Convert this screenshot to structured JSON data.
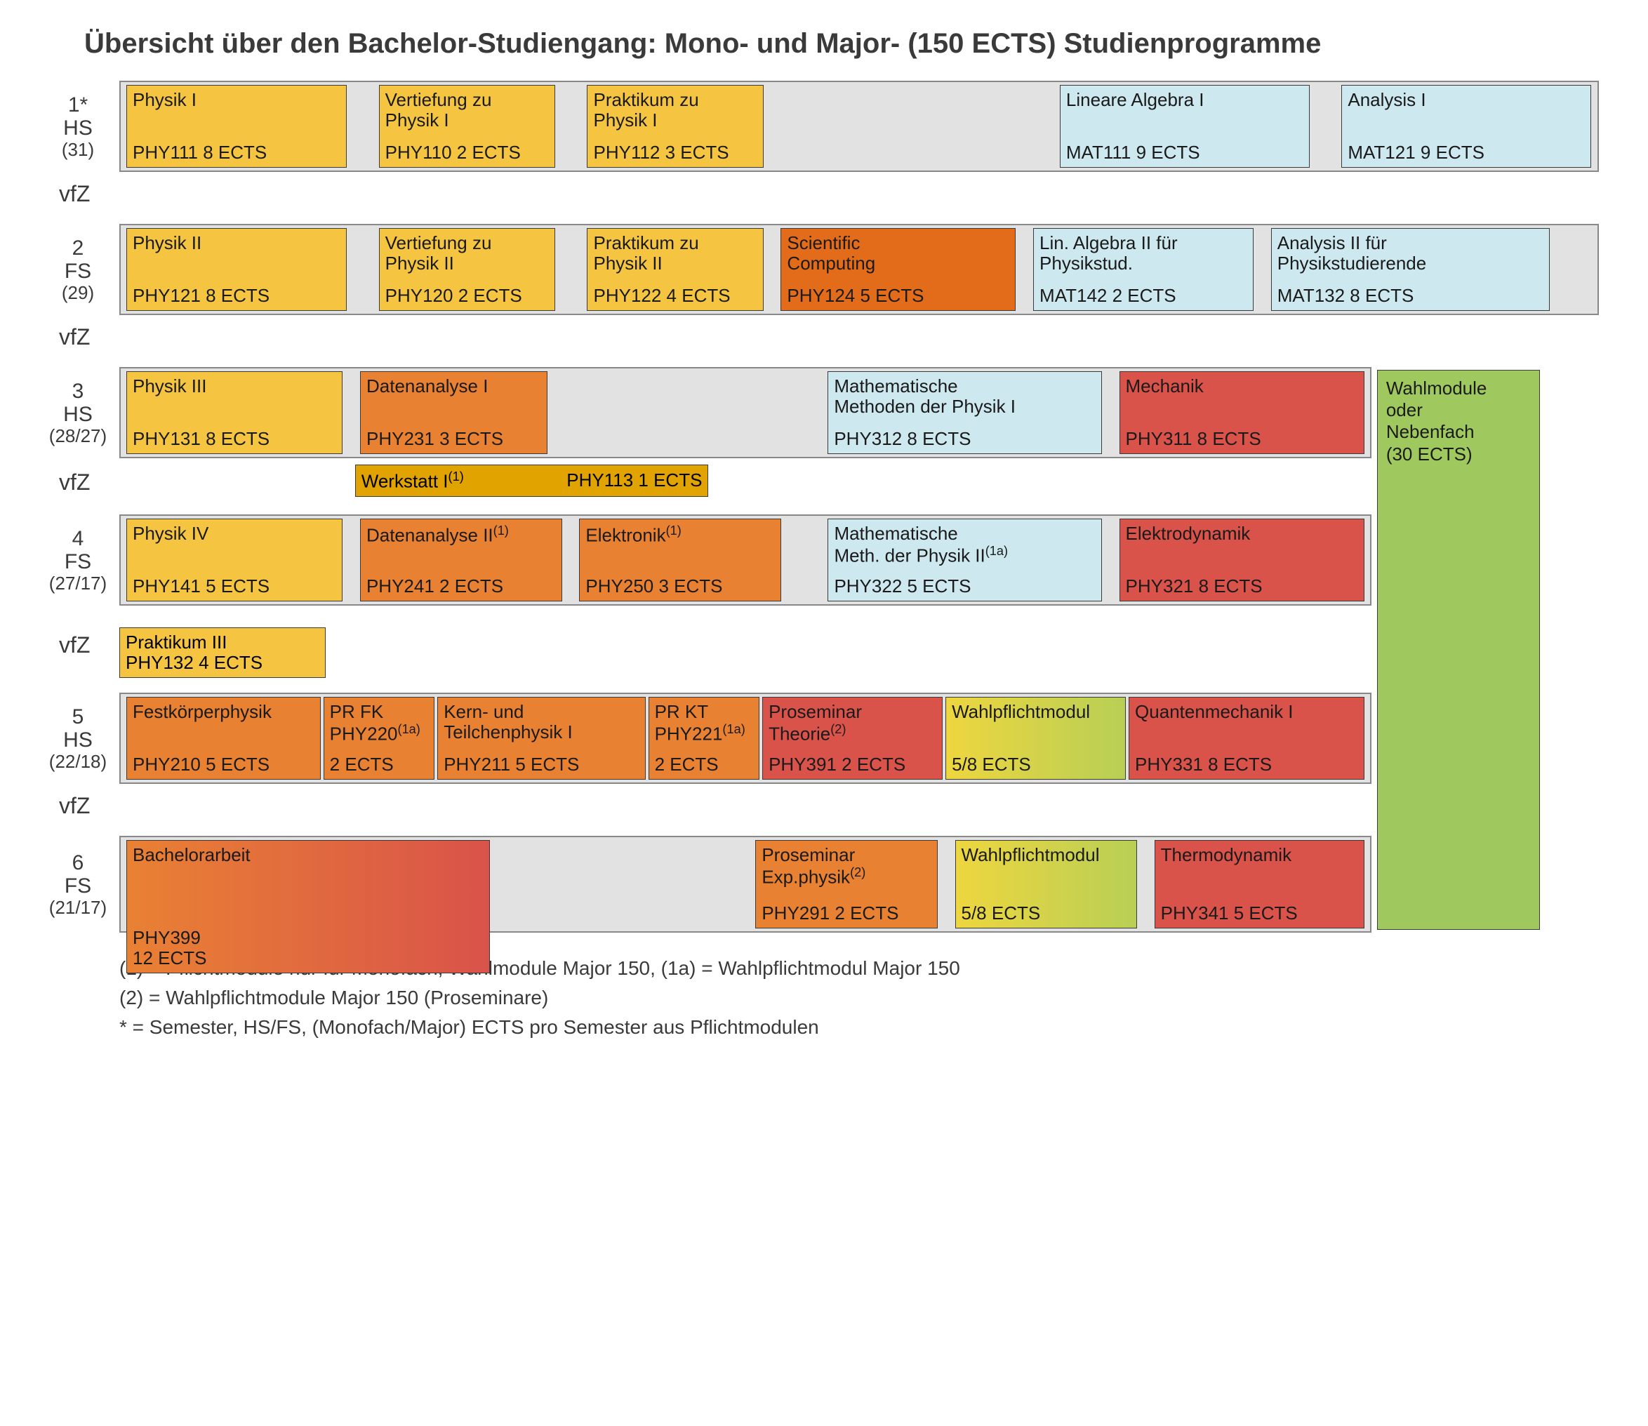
{
  "title": "Übersicht über den Bachelor-Studiengang: Mono- und Major- (150 ECTS) Studienprogramme",
  "vfz_label": "vfZ",
  "colors": {
    "bg": "#ffffff",
    "track_bg": "#e2e2e2",
    "border": "#888888",
    "text": "#3a3a3a",
    "yellow": "#f5c542",
    "yellow_dark": "#e0a300",
    "blue": "#cde8ef",
    "orange": "#e98133",
    "orange_deep": "#e36c1a",
    "red": "#d9534a",
    "green": "#9fc95f",
    "yellow_green_a": "#eed63f",
    "yellow_green_b": "#b8cf55"
  },
  "layout": {
    "total_units": 100,
    "green_panel_right_units": 4,
    "green_panel_width_units": 11
  },
  "green_panel": {
    "line1": "Wahlmodule",
    "line2": "oder",
    "line3": "Nebenfach",
    "line4": "(30 ECTS)"
  },
  "semesters": [
    {
      "id": "s1",
      "label1": "1*",
      "label2": "HS",
      "label3": "(31)",
      "has_green": false,
      "courses": [
        {
          "title": "Physik I",
          "sub": "PHY111  8 ECTS",
          "color": "yellow",
          "w": 15
        },
        {
          "gap": true,
          "w": 2
        },
        {
          "title": "Vertiefung zu\nPhysik I",
          "sub": "PHY110  2 ECTS",
          "color": "yellow",
          "w": 12
        },
        {
          "gap": true,
          "w": 2
        },
        {
          "title": "Praktikum zu\nPhysik I",
          "sub": "PHY112  3 ECTS",
          "color": "yellow",
          "w": 12
        },
        {
          "gap": true,
          "w": 20
        },
        {
          "title": "Lineare Algebra I",
          "sub": "MAT111  9 ECTS",
          "color": "blue",
          "w": 17
        },
        {
          "gap": true,
          "w": 2
        },
        {
          "title": "Analysis I",
          "sub": "MAT121  9 ECTS",
          "color": "blue",
          "w": 17
        }
      ],
      "vfz_after": true,
      "vfz_courses": []
    },
    {
      "id": "s2",
      "label1": "2",
      "label2": "FS",
      "label3": "(29)",
      "has_green": false,
      "courses": [
        {
          "title": "Physik II",
          "sub": "PHY121 8 ECTS",
          "color": "yellow",
          "w": 15
        },
        {
          "gap": true,
          "w": 2
        },
        {
          "title": "Vertiefung zu\nPhysik II",
          "sub": "PHY120  2 ECTS",
          "color": "yellow",
          "w": 12
        },
        {
          "gap": true,
          "w": 2
        },
        {
          "title": "Praktikum zu\nPhysik II",
          "sub": "PHY122  4 ECTS",
          "color": "yellow",
          "w": 12
        },
        {
          "gap": true,
          "w": 1
        },
        {
          "title": "Scientific\nComputing",
          "sub": "PHY124  5 ECTS",
          "color": "orange_deep",
          "w": 16
        },
        {
          "gap": true,
          "w": 1
        },
        {
          "title": "Lin. Algebra II für\nPhysikstud.",
          "sub": "MAT142  2 ECTS",
          "color": "blue",
          "w": 15
        },
        {
          "gap": true,
          "w": 1
        },
        {
          "title": "Analysis II für\nPhysikstudierende",
          "sub": "MAT132  8 ECTS",
          "color": "blue",
          "w": 19
        }
      ],
      "vfz_after": true,
      "vfz_courses": []
    },
    {
      "id": "s3",
      "label1": "3",
      "label2": "HS",
      "label3": "(28/27)",
      "has_green": true,
      "courses": [
        {
          "title": "Physik III",
          "sub": "PHY131  8 ECTS",
          "color": "yellow",
          "w": 15
        },
        {
          "gap": true,
          "w": 1
        },
        {
          "title": "Datenanalyse I",
          "sub": "PHY231 3 ECTS",
          "color": "orange",
          "w": 13
        },
        {
          "gap": true,
          "w": 19
        },
        {
          "title": "Mathematische\nMethoden der Physik I",
          "sub": "PHY312  8 ECTS",
          "color": "blue",
          "w": 19
        },
        {
          "gap": true,
          "w": 1
        },
        {
          "title": "Mechanik",
          "sub": "PHY311  8 ECTS",
          "color": "red",
          "w": 17
        }
      ],
      "vfz_after": true,
      "vfz_courses": [
        {
          "title": "Werkstatt I",
          "sup": "(1)",
          "sub": "PHY113 1 ECTS",
          "color": "yellow_dark",
          "left_units": 16,
          "w_units": 24,
          "single_line": true
        }
      ]
    },
    {
      "id": "s4",
      "label1": "4",
      "label2": "FS",
      "label3": "(27/17)",
      "has_green": true,
      "courses": [
        {
          "title": "Physik IV",
          "sub": "PHY141  5 ECTS",
          "color": "yellow",
          "w": 15
        },
        {
          "gap": true,
          "w": 1
        },
        {
          "title": "Datenanalyse II",
          "sup": "(1)",
          "sub": "PHY241 2 ECTS",
          "color": "orange",
          "w": 14
        },
        {
          "gap": true,
          "w": 1
        },
        {
          "title": "Elektronik",
          "sup": "(1)",
          "sub": "PHY250  3 ECTS",
          "color": "orange",
          "w": 14
        },
        {
          "gap": true,
          "w": 3
        },
        {
          "title": "Mathematische\nMeth. der Physik II",
          "sup": "(1a)",
          "sub": "PHY322  5 ECTS",
          "color": "blue",
          "w": 19
        },
        {
          "gap": true,
          "w": 1
        },
        {
          "title": "Elektrodynamik",
          "sub": "PHY321  8 ECTS",
          "color": "red",
          "w": 17
        }
      ],
      "vfz_after": true,
      "vfz_courses": [
        {
          "title": "Praktikum III",
          "sub": "PHY132  4 ECTS",
          "color": "yellow",
          "left_units": 0,
          "w_units": 14
        }
      ]
    },
    {
      "id": "s5",
      "label1": "5",
      "label2": "HS",
      "label3": "(22/18)",
      "has_green": true,
      "courses": [
        {
          "title": "Festkörperphysik",
          "sub": "PHY210  5 ECTS",
          "color": "orange",
          "w": 14
        },
        {
          "title": "PR FK",
          "subtitle2": "PHY220",
          "sup": "(1a)",
          "sub": "2 ECTS",
          "color": "orange",
          "w": 8
        },
        {
          "title": "Kern- und\nTeilchenphysik I",
          "sub": "PHY211  5 ECTS",
          "color": "orange",
          "w": 15
        },
        {
          "title": "PR KT",
          "subtitle2": "PHY221",
          "sup": "(1a)",
          "sub": "2 ECTS",
          "color": "orange",
          "w": 8
        },
        {
          "title": "Proseminar\nTheorie",
          "sup": "(2)",
          "sub": "PHY391  2 ECTS",
          "color": "red",
          "w": 13
        },
        {
          "title": "Wahlpflichtmodul",
          "sub": "5/8 ECTS",
          "color": "grad_yg",
          "w": 13
        },
        {
          "title": "Quantenmechanik I",
          "sub": "PHY331  8 ECTS",
          "color": "red",
          "w": 17
        }
      ],
      "vfz_after": true,
      "vfz_courses": []
    },
    {
      "id": "s6",
      "label1": "6",
      "label2": "FS",
      "label3": "(21/17)",
      "has_green": true,
      "track_shorter": true,
      "courses": [
        {
          "title": "Bachelorarbeit",
          "sub": "PHY399\n12 ECTS",
          "color": "grad_or_red",
          "w": 26,
          "tall": true
        },
        {
          "gap": true,
          "w": 18
        },
        {
          "title": "Proseminar\nExp.physik",
          "sup": "(2)",
          "sub": "PHY291  2 ECTS",
          "color": "orange",
          "w": 13
        },
        {
          "gap": true,
          "w": 1
        },
        {
          "title": "Wahlpflichtmodul",
          "sub": "5/8 ECTS",
          "color": "grad_yg",
          "w": 13
        },
        {
          "gap": true,
          "w": 1
        },
        {
          "title": "Thermodynamik",
          "sub": "PHY341  5 ECTS",
          "color": "red",
          "w": 15
        }
      ],
      "vfz_after": false,
      "vfz_courses": []
    }
  ],
  "footnotes": [
    "(1) = Pflichtmodule nur für Monofach, Wahlmodule Major 150,   (1a) = Wahlpflichtmodul Major 150",
    "(2) = Wahlpflichtmodule Major 150 (Proseminare)",
    " *  = Semester, HS/FS, (Monofach/Major) ECTS pro Semester aus Pflichtmodulen"
  ]
}
